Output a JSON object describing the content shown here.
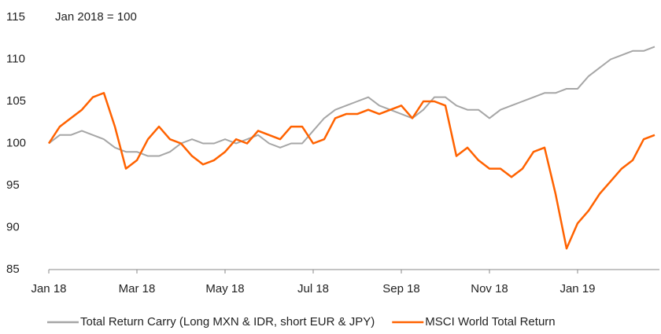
{
  "chart_data": {
    "type": "line",
    "annotation": "Jan 2018 = 100",
    "categories": [
      "Jan 18",
      null,
      null,
      null,
      null,
      null,
      null,
      null,
      "Mar 18",
      null,
      null,
      null,
      null,
      null,
      null,
      null,
      "May 18",
      null,
      null,
      null,
      null,
      null,
      null,
      null,
      "Jul 18",
      null,
      null,
      null,
      null,
      null,
      null,
      null,
      "Sep 18",
      null,
      null,
      null,
      null,
      null,
      null,
      null,
      "Nov 18",
      null,
      null,
      null,
      null,
      null,
      null,
      null,
      "Jan 19",
      null,
      null,
      null,
      null,
      null,
      null,
      null
    ],
    "series": [
      {
        "name": "Total Return Carry (Long MXN & IDR, short EUR & JPY)",
        "color": "#a6a6a6",
        "values": [
          100,
          101,
          101,
          101.5,
          101,
          100.5,
          99.5,
          99,
          99,
          98.5,
          98.5,
          99,
          100,
          100.5,
          100,
          100,
          100.5,
          100,
          100.5,
          101,
          100,
          99.5,
          100,
          100,
          101.5,
          103,
          104,
          104.5,
          105,
          105.5,
          104.5,
          104,
          103.5,
          103,
          104,
          105.5,
          105.5,
          104.5,
          104,
          104,
          103,
          104,
          104.5,
          105,
          105.5,
          106,
          106,
          106.5,
          106.5,
          108,
          109,
          110,
          110.5,
          111,
          111,
          111.5
        ]
      },
      {
        "name": "MSCI World Total Return",
        "color": "#ff6200",
        "values": [
          100,
          102,
          103,
          104,
          105.5,
          106,
          102,
          97,
          98,
          100.5,
          102,
          100.5,
          100,
          98.5,
          97.5,
          98,
          99,
          100.5,
          100,
          101.5,
          101,
          100.5,
          102,
          102,
          100,
          100.5,
          103,
          103.5,
          103.5,
          104,
          103.5,
          104,
          104.5,
          103,
          105,
          105,
          104.5,
          98.5,
          99.5,
          98,
          97,
          97,
          96,
          97,
          99,
          99.5,
          94,
          87.5,
          90.5,
          92,
          94,
          95.5,
          97,
          98,
          100.5,
          101
        ]
      }
    ],
    "ylim": [
      85,
      115
    ],
    "yticks": [
      85,
      90,
      95,
      100,
      105,
      110,
      115
    ]
  }
}
